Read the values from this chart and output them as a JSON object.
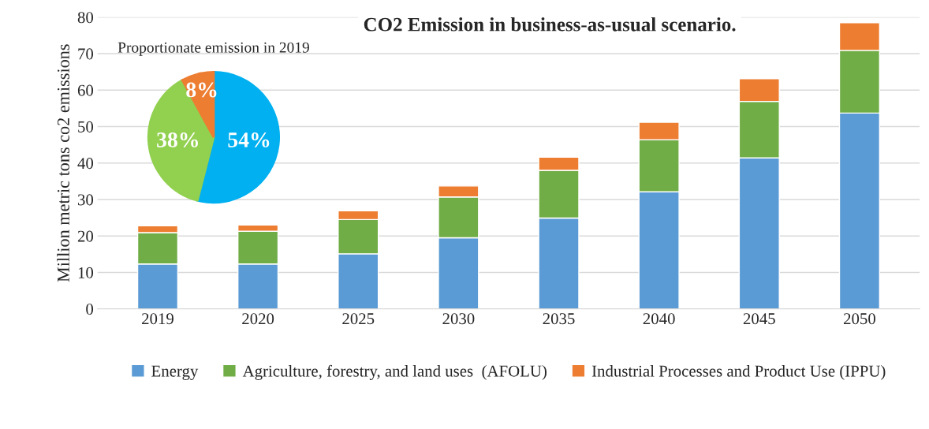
{
  "chart_data": [
    {
      "type": "bar",
      "title": "CO2 Emission in business-as-usual scenario.",
      "ylabel": "Million metric tons co2 emissions",
      "categories": [
        "2019",
        "2020",
        "2025",
        "2030",
        "2035",
        "2040",
        "2045",
        "2050"
      ],
      "stacked": true,
      "series": [
        {
          "name": "Energy",
          "color": "#5b9bd5",
          "values": [
            12.3,
            12.3,
            15.1,
            19.5,
            24.9,
            32.1,
            41.4,
            53.7
          ]
        },
        {
          "name": "Agriculture, forestry, and land uses  (AFOLU)",
          "color": "#70ad47",
          "values": [
            8.6,
            9.0,
            9.4,
            11.2,
            13.1,
            14.3,
            15.5,
            17.2
          ]
        },
        {
          "name": "Industrial Processes and Product Use (IPPU)",
          "color": "#ed7d31",
          "values": [
            1.9,
            1.7,
            2.4,
            3.0,
            3.6,
            4.8,
            6.2,
            7.6
          ]
        }
      ],
      "ylim": [
        0,
        80
      ],
      "yticks": [
        0,
        10,
        20,
        30,
        40,
        50,
        60,
        70,
        80
      ],
      "grid": "y",
      "legend": "bottom"
    },
    {
      "type": "pie",
      "title": "Proportionate emission in 2019",
      "categories": [
        null,
        null,
        null
      ],
      "values": [
        54,
        38,
        8
      ],
      "colors": [
        "#00b0f0",
        "#92d050",
        "#ed7d31"
      ],
      "value_labels": [
        "54%",
        "38%",
        "8%"
      ]
    }
  ]
}
